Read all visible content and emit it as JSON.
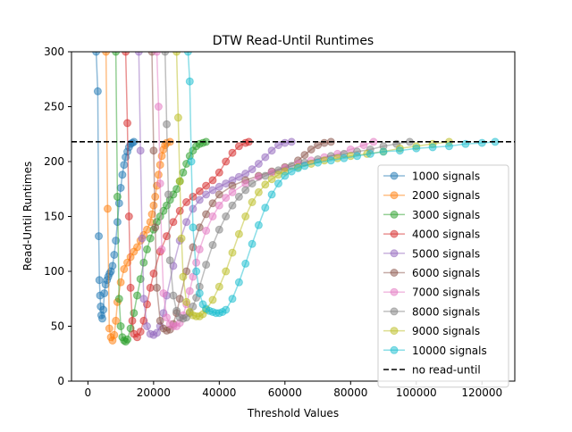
{
  "chart_data": {
    "type": "line",
    "title": "DTW Read-Until Runtimes",
    "xlabel": "Threshold Values",
    "ylabel": "Read-Until Runtimes",
    "xlim": [
      -5000,
      130000
    ],
    "ylim": [
      0,
      300
    ],
    "xticks": [
      0,
      20000,
      40000,
      60000,
      80000,
      100000,
      120000
    ],
    "xtick_labels": [
      "0",
      "20000",
      "40000",
      "60000",
      "80000",
      "100000",
      "120000"
    ],
    "yticks": [
      0,
      50,
      100,
      150,
      200,
      250,
      300
    ],
    "ytick_labels": [
      "0",
      "50",
      "100",
      "150",
      "200",
      "250",
      "300"
    ],
    "grid": false,
    "legend_position": "lower-right",
    "reference_line": {
      "name": "no read-until",
      "y": 218,
      "color": "#000000",
      "style": "dashed"
    },
    "series": [
      {
        "name": "1000 signals",
        "color": "#1f77b4",
        "x": [
          2500,
          3000,
          3300,
          3500,
          3700,
          3900,
          4100,
          4400,
          4700,
          5000,
          5400,
          5800,
          6200,
          6600,
          7000,
          7500,
          8000,
          8500,
          9000,
          9500,
          10000,
          10500,
          11000,
          11500,
          12000,
          12500,
          13000,
          13500,
          14000
        ],
        "y": [
          300,
          264,
          132,
          92,
          78,
          68,
          60,
          57,
          65,
          80,
          88,
          92,
          95,
          98,
          100,
          105,
          115,
          128,
          145,
          162,
          176,
          188,
          197,
          204,
          209,
          213,
          216,
          217,
          218
        ]
      },
      {
        "name": "2000 signals",
        "color": "#ff7f0e",
        "x": [
          5500,
          6000,
          6500,
          7000,
          7500,
          8000,
          8500,
          9000,
          10000,
          11000,
          12000,
          13000,
          14000,
          15000,
          16000,
          17000,
          18000,
          19000,
          19500,
          20000,
          20500,
          21000,
          21500,
          22000,
          22500,
          23000,
          23500,
          24000,
          25000
        ],
        "y": [
          300,
          157,
          48,
          40,
          37,
          42,
          55,
          72,
          90,
          102,
          108,
          113,
          118,
          122,
          128,
          133,
          138,
          145,
          152,
          160,
          168,
          178,
          188,
          197,
          205,
          211,
          215,
          217,
          218
        ]
      },
      {
        "name": "3000 signals",
        "color": "#2ca02c",
        "x": [
          8500,
          9000,
          9500,
          10000,
          10500,
          11000,
          11500,
          12000,
          13000,
          14000,
          15000,
          16000,
          17000,
          18000,
          19000,
          20000,
          21000,
          22000,
          23000,
          24000,
          25000,
          26000,
          27000,
          28000,
          29000,
          30000,
          31000,
          32000,
          33000,
          34000,
          35000,
          36000
        ],
        "y": [
          300,
          168,
          75,
          50,
          40,
          37,
          36,
          38,
          48,
          62,
          78,
          93,
          108,
          120,
          130,
          138,
          145,
          150,
          155,
          160,
          165,
          170,
          175,
          182,
          190,
          198,
          205,
          210,
          214,
          216,
          217,
          218
        ]
      },
      {
        "name": "4000 signals",
        "color": "#d62728",
        "x": [
          11500,
          12000,
          12500,
          13000,
          13500,
          14000,
          15000,
          16000,
          17000,
          18000,
          19000,
          20000,
          22000,
          24000,
          26000,
          28000,
          30000,
          32000,
          34000,
          36000,
          38000,
          40000,
          42000,
          44000,
          46000,
          48000,
          49000
        ],
        "y": [
          300,
          235,
          150,
          85,
          55,
          43,
          40,
          45,
          55,
          70,
          85,
          98,
          118,
          132,
          145,
          155,
          163,
          168,
          173,
          178,
          183,
          190,
          200,
          208,
          214,
          217,
          218
        ]
      },
      {
        "name": "5000 signals",
        "color": "#9467bd",
        "x": [
          15500,
          16000,
          16500,
          17000,
          18000,
          19000,
          20000,
          21000,
          22000,
          23000,
          24000,
          26000,
          28000,
          30000,
          32000,
          34000,
          36000,
          38000,
          40000,
          42000,
          44000,
          46000,
          48000,
          50000,
          52000,
          54000,
          56000,
          58000,
          60000,
          62000
        ],
        "y": [
          300,
          210,
          130,
          75,
          50,
          43,
          42,
          44,
          50,
          62,
          78,
          105,
          128,
          145,
          157,
          165,
          170,
          174,
          177,
          180,
          183,
          186,
          189,
          193,
          198,
          204,
          210,
          215,
          217,
          218
        ]
      },
      {
        "name": "6000 signals",
        "color": "#8c564b",
        "x": [
          19500,
          20000,
          20500,
          21000,
          22000,
          23000,
          24000,
          25000,
          26000,
          27000,
          28000,
          30000,
          32000,
          34000,
          36000,
          38000,
          40000,
          44000,
          48000,
          52000,
          56000,
          60000,
          64000,
          66000,
          68000,
          70000,
          72000,
          74000
        ],
        "y": [
          300,
          210,
          140,
          85,
          55,
          48,
          46,
          47,
          52,
          62,
          75,
          100,
          122,
          140,
          152,
          162,
          170,
          178,
          183,
          187,
          191,
          195,
          201,
          206,
          211,
          215,
          217,
          218
        ]
      },
      {
        "name": "7000 signals",
        "color": "#e377c2",
        "x": [
          21000,
          21500,
          22000,
          22500,
          23000,
          24000,
          25000,
          26000,
          27000,
          28000,
          29000,
          30000,
          31000,
          32000,
          33000,
          34000,
          36000,
          38000,
          40000,
          42000,
          44000,
          48000,
          52000,
          56000,
          60000,
          64000,
          68000,
          72000,
          76000,
          80000,
          84000,
          87000
        ],
        "y": [
          300,
          250,
          180,
          120,
          80,
          58,
          52,
          50,
          50,
          53,
          60,
          70,
          82,
          95,
          108,
          120,
          137,
          150,
          160,
          167,
          172,
          180,
          186,
          190,
          194,
          198,
          201,
          204,
          207,
          211,
          215,
          218
        ]
      },
      {
        "name": "8000 signals",
        "color": "#7f7f7f",
        "x": [
          23500,
          24000,
          24500,
          25000,
          26000,
          27000,
          28000,
          29000,
          30000,
          31000,
          32000,
          33000,
          34000,
          36000,
          38000,
          40000,
          42000,
          44000,
          46000,
          48000,
          50000,
          54000,
          58000,
          62000,
          66000,
          70000,
          74000,
          78000,
          82000,
          86000,
          90000,
          94000,
          98000
        ],
        "y": [
          300,
          234,
          170,
          110,
          78,
          64,
          58,
          57,
          58,
          62,
          68,
          76,
          86,
          106,
          124,
          138,
          150,
          160,
          168,
          174,
          180,
          187,
          192,
          196,
          199,
          202,
          205,
          207,
          209,
          211,
          214,
          216,
          218
        ]
      },
      {
        "name": "9000 signals",
        "color": "#bcbd22",
        "x": [
          27000,
          27500,
          28000,
          28500,
          29000,
          30000,
          31000,
          32000,
          33000,
          34000,
          35000,
          36000,
          38000,
          40000,
          42000,
          44000,
          46000,
          48000,
          50000,
          52000,
          54000,
          56000,
          58000,
          60000,
          64000,
          68000,
          72000,
          76000,
          80000,
          85000,
          90000,
          95000,
          100000,
          105000,
          110000
        ],
        "y": [
          300,
          240,
          182,
          130,
          95,
          72,
          63,
          60,
          59,
          59,
          61,
          65,
          74,
          86,
          100,
          117,
          134,
          150,
          163,
          172,
          179,
          184,
          188,
          191,
          195,
          198,
          201,
          203,
          205,
          207,
          209,
          212,
          214,
          216,
          218
        ]
      },
      {
        "name": "10000 signals",
        "color": "#17becf",
        "x": [
          30500,
          31000,
          31500,
          32000,
          33000,
          34000,
          35000,
          36000,
          37000,
          38000,
          39000,
          40000,
          41000,
          42000,
          44000,
          46000,
          48000,
          50000,
          52000,
          54000,
          56000,
          58000,
          60000,
          62000,
          64000,
          66000,
          70000,
          74000,
          78000,
          82000,
          86000,
          90000,
          95000,
          100000,
          105000,
          110000,
          115000,
          120000,
          124000
        ],
        "y": [
          300,
          273,
          200,
          140,
          100,
          80,
          70,
          66,
          64,
          63,
          62,
          62,
          63,
          65,
          75,
          90,
          107,
          125,
          142,
          158,
          170,
          180,
          187,
          191,
          194,
          196,
          199,
          201,
          203,
          205,
          207,
          209,
          210,
          212,
          213,
          214,
          216,
          217,
          218
        ]
      }
    ]
  }
}
